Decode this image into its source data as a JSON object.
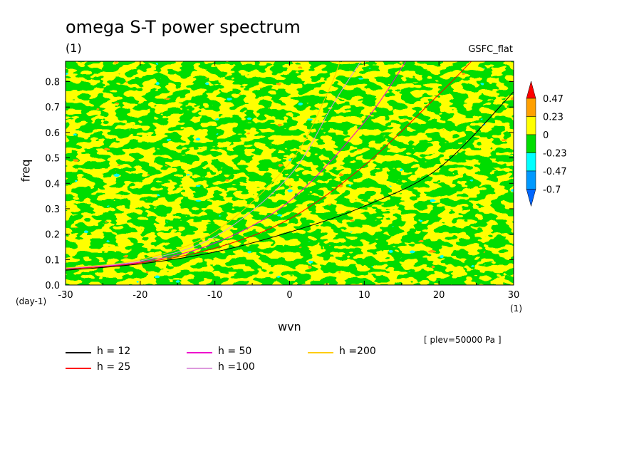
{
  "figure": {
    "title": "omega S-T power spectrum",
    "unit_top": "(1)",
    "run_name": "GSFC_flat",
    "plev_note": "[ plev=50000 Pa ]",
    "y_unit": "(day-1)",
    "x_unit": "(1)"
  },
  "chart_data": {
    "type": "heatmap",
    "xlabel": "wvn",
    "ylabel": "freq",
    "xlim": [
      -30,
      30
    ],
    "ylim": [
      0,
      0.88
    ],
    "x_ticks": [
      "-30",
      "-20",
      "-10",
      "0",
      "10",
      "20",
      "30"
    ],
    "x_tick_values": [
      -30,
      -20,
      -10,
      0,
      10,
      20,
      30
    ],
    "y_ticks": [
      "0.0",
      "0.1",
      "0.2",
      "0.3",
      "0.4",
      "0.5",
      "0.6",
      "0.7",
      "0.8"
    ],
    "y_tick_values": [
      0,
      0.1,
      0.2,
      0.3,
      0.4,
      0.5,
      0.6,
      0.7,
      0.8
    ],
    "colorbar": {
      "labels": [
        "0.47",
        "0.23",
        "0",
        "-0.23",
        "-0.47",
        "-0.7"
      ],
      "colors": [
        "#ff0000",
        "#ffa000",
        "#ffff00",
        "#00dd00",
        "#00ffff",
        "#0099ff",
        "#0066ff"
      ]
    },
    "field_colors": {
      "positive_high": "#ffa000",
      "positive": "#ffff00",
      "negative": "#00dd00",
      "negative_mid": "#00ffff",
      "negative_low": "#0099ff",
      "extreme_high": "#ff0000"
    },
    "dispersion_curves": [
      {
        "name": "h = 12",
        "h": 12,
        "color": "#000000",
        "points": [
          [
            -30,
            0.058
          ],
          [
            -20,
            0.083
          ],
          [
            -10,
            0.13
          ],
          [
            0,
            0.208
          ],
          [
            10,
            0.31
          ],
          [
            20,
            0.46
          ],
          [
            30,
            0.76
          ]
        ]
      },
      {
        "name": "h = 25",
        "h": 25,
        "color": "#ff0000",
        "points": [
          [
            -30,
            0.062
          ],
          [
            -20,
            0.087
          ],
          [
            -10,
            0.145
          ],
          [
            0,
            0.26
          ],
          [
            10,
            0.47
          ],
          [
            20,
            0.75
          ],
          [
            25,
            0.9
          ]
        ]
      },
      {
        "name": "h = 50",
        "h": 50,
        "color": "#ee00cc",
        "points": [
          [
            -30,
            0.065
          ],
          [
            -20,
            0.09
          ],
          [
            -10,
            0.165
          ],
          [
            0,
            0.33
          ],
          [
            10,
            0.64
          ],
          [
            16,
            0.9
          ]
        ]
      },
      {
        "name": "h =100",
        "h": 100,
        "color": "#dd99dd",
        "points": [
          [
            -30,
            0.066
          ],
          [
            -20,
            0.095
          ],
          [
            -10,
            0.19
          ],
          [
            0,
            0.43
          ],
          [
            6,
            0.72
          ],
          [
            10,
            0.9
          ]
        ]
      },
      {
        "name": "h =200",
        "h": 200,
        "color": "#ffcc00",
        "points": [
          [
            -30,
            0.067
          ],
          [
            -20,
            0.1
          ],
          [
            -10,
            0.21
          ],
          [
            0,
            0.48
          ],
          [
            5,
            0.75
          ],
          [
            7,
            0.9
          ]
        ]
      }
    ]
  },
  "legend": [
    {
      "label": "h = 12",
      "color": "#000000"
    },
    {
      "label": "h = 25",
      "color": "#ff0000"
    },
    {
      "label": "h = 50",
      "color": "#ee00cc"
    },
    {
      "label": "h =100",
      "color": "#dd99dd"
    },
    {
      "label": "h =200",
      "color": "#ffcc00"
    }
  ]
}
